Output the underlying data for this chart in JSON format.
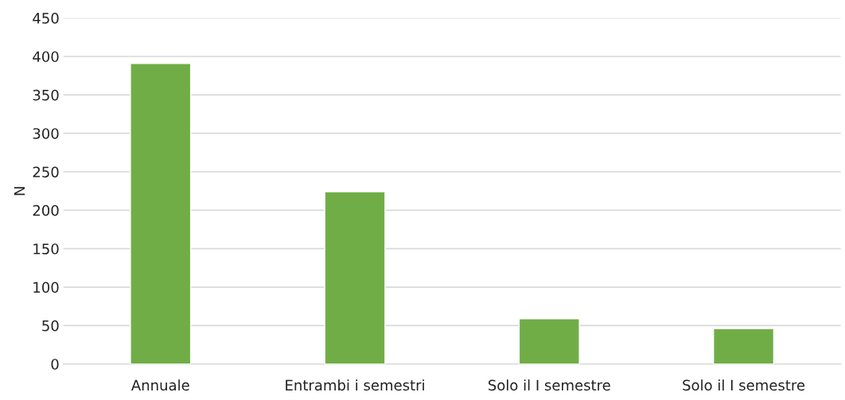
{
  "chart_data": {
    "type": "bar",
    "ylabel": "N",
    "categories": [
      "Annuale",
      "Entrambi i semestri",
      "Solo il I semestre",
      "Solo il I semestre"
    ],
    "values": [
      391,
      224,
      59,
      46
    ],
    "color": "#70ad47",
    "ylim": [
      0,
      450
    ],
    "yticks": [
      0,
      50,
      100,
      150,
      200,
      250,
      300,
      350,
      400,
      450
    ],
    "grid": "y"
  }
}
